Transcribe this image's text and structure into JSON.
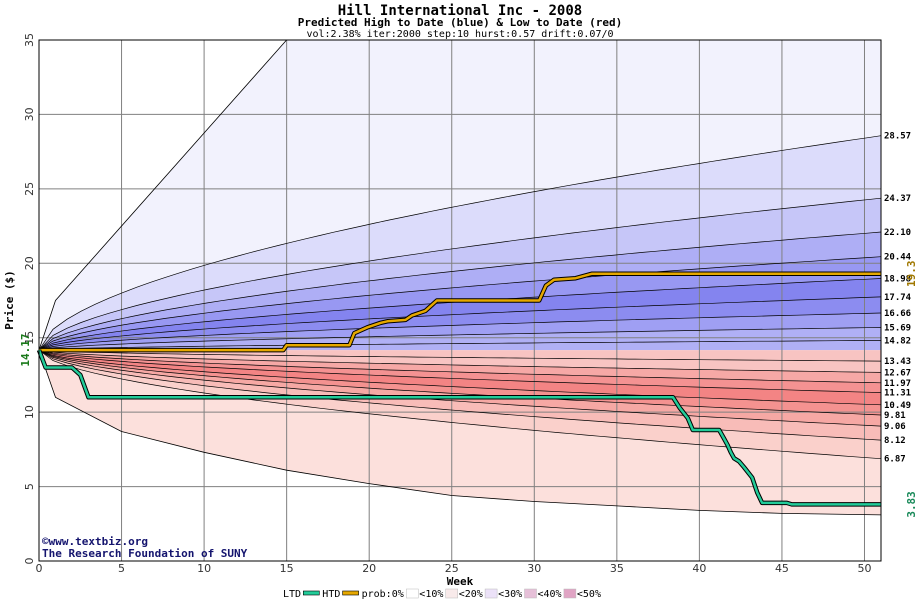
{
  "chart_data": {
    "type": "area",
    "title": "Hill International Inc - 2008",
    "subtitle": "Predicted High to Date (blue) &  Low to Date (red)",
    "params": "vol:2.38% iter:2000 step:10 hurst:0.57 drift:0.07/0",
    "xlabel": "Week",
    "ylabel": "Price ($)",
    "xlim": [
      0,
      51
    ],
    "ylim": [
      0,
      35
    ],
    "xticks": [
      "0",
      "5",
      "10",
      "15",
      "20",
      "25",
      "30",
      "35",
      "40",
      "45",
      "50"
    ],
    "yticks": [
      "0",
      "5",
      "10",
      "15",
      "20",
      "25",
      "30",
      "35"
    ],
    "grid": true,
    "start_price": "14.17",
    "start_value": 14.17,
    "high_end_labels": [
      "28.57",
      "24.37",
      "22.10",
      "20.44",
      "18.98",
      "17.74",
      "16.66",
      "15.69",
      "14.82"
    ],
    "high_end_values": [
      28.57,
      24.37,
      22.1,
      20.44,
      18.98,
      17.74,
      16.66,
      15.69,
      14.82
    ],
    "low_end_labels": [
      "13.43",
      "12.67",
      "11.97",
      "11.31",
      "10.49",
      "9.81",
      "9.06",
      "8.12",
      "6.87"
    ],
    "low_end_values": [
      13.43,
      12.67,
      11.97,
      11.31,
      10.49,
      9.81,
      9.06,
      8.12,
      6.87
    ],
    "outer_high": [
      [
        0,
        14.17
      ],
      [
        1,
        17.5
      ],
      [
        15,
        35
      ]
    ],
    "outer_low": [
      [
        0,
        14.17
      ],
      [
        1,
        11
      ],
      [
        5,
        8.7
      ],
      [
        10,
        7.3
      ],
      [
        15,
        6.1
      ],
      [
        20,
        5.2
      ],
      [
        25,
        4.4
      ],
      [
        30,
        4.0
      ],
      [
        35,
        3.7
      ],
      [
        40,
        3.4
      ],
      [
        45,
        3.2
      ],
      [
        51,
        3.1
      ]
    ],
    "htd_end_label": "19.3",
    "htd_series": [
      [
        0,
        14.17
      ],
      [
        14.8,
        14.17
      ],
      [
        15,
        14.5
      ],
      [
        18.8,
        14.5
      ],
      [
        19.1,
        15.3
      ],
      [
        19.9,
        15.7
      ],
      [
        20.7,
        16.0
      ],
      [
        21.1,
        16.1
      ],
      [
        22.2,
        16.2
      ],
      [
        22.6,
        16.5
      ],
      [
        23.4,
        16.8
      ],
      [
        24.1,
        17.5
      ],
      [
        30.3,
        17.5
      ],
      [
        30.7,
        18.5
      ],
      [
        31.2,
        18.9
      ],
      [
        32.5,
        19.0
      ],
      [
        33.5,
        19.3
      ],
      [
        51,
        19.3
      ]
    ],
    "ltd_end_label": "3.83",
    "ltd_series": [
      [
        0,
        14.17
      ],
      [
        0.4,
        13.0
      ],
      [
        2,
        13.0
      ],
      [
        2.5,
        12.5
      ],
      [
        3,
        11.0
      ],
      [
        38.4,
        11.0
      ],
      [
        38.8,
        10.3
      ],
      [
        39.3,
        9.6
      ],
      [
        39.6,
        8.8
      ],
      [
        41.2,
        8.8
      ],
      [
        41.5,
        8.2
      ],
      [
        41.7,
        7.8
      ],
      [
        41.9,
        7.3
      ],
      [
        42.1,
        6.9
      ],
      [
        42.4,
        6.7
      ],
      [
        42.7,
        6.3
      ],
      [
        43.2,
        5.6
      ],
      [
        43.5,
        4.6
      ],
      [
        43.8,
        3.9
      ],
      [
        45.3,
        3.9
      ],
      [
        45.6,
        3.8
      ],
      [
        51,
        3.8
      ]
    ],
    "legend": [
      "LTD",
      "HTD",
      "prob:0%",
      "<10%",
      "<20%",
      "<30%",
      "<40%",
      "<50%"
    ],
    "colors": {
      "background": "#ffffff",
      "plot_border": "#000000",
      "grid": "#808080",
      "htd_line": "#e6a800",
      "ltd_line": "#22cc99",
      "start_label": "#1a7a1a",
      "htd_label": "#a07800",
      "ltd_label": "#1a8a5a",
      "blue_bands": [
        "#f2f2fd",
        "#dcdcfb",
        "#c6c6f8",
        "#aeaef5",
        "#9898f2",
        "#8484ef",
        "#8c8cf0",
        "#9f9ff3",
        "#b0b0f5"
      ],
      "red_bands": [
        "#fce0dc",
        "#fad0cb",
        "#f8bcb8",
        "#f6a8a4",
        "#f49290",
        "#f38484",
        "#f49292",
        "#f6a8a6",
        "#f8c4c2"
      ],
      "legend_swatches": [
        "#ffffff",
        "#f8eaea",
        "#ece2f8",
        "#e6c0d8",
        "#e0a4c4",
        "#d090c0"
      ]
    }
  },
  "credits": {
    "line1": "©www.textbiz.org",
    "line2": "The Research Foundation of SUNY"
  }
}
